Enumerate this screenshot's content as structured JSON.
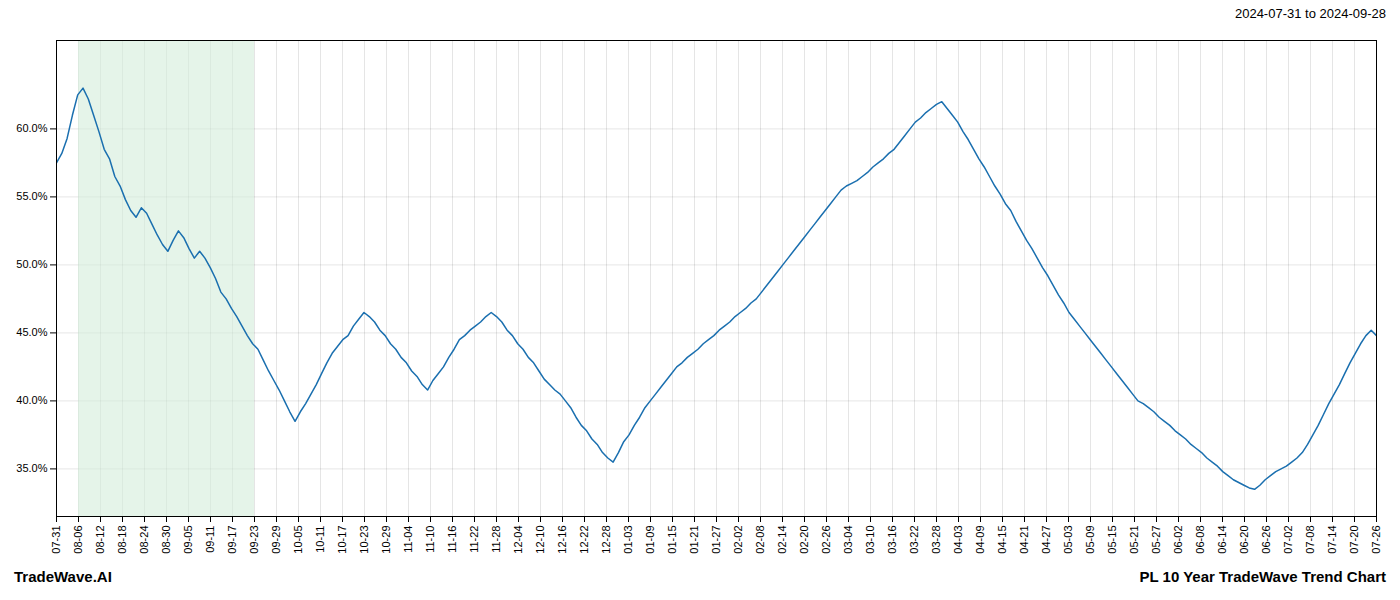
{
  "chart_data": {
    "type": "line",
    "title": "2024-07-31 to 2024-09-28",
    "annotations": [
      "TradeWave.AI",
      "PL 10 Year TradeWave Trend Chart"
    ],
    "color": "#1a6faf",
    "grid": true,
    "shade": {
      "x": [
        4.15,
        37.35
      ],
      "color": "#d4edda"
    },
    "xlim": [
      0,
      249
    ],
    "xticks": [
      {
        "value": 0,
        "label": "07-31"
      },
      {
        "value": 4.15,
        "label": "08-06"
      },
      {
        "value": 8.3,
        "label": "08-12"
      },
      {
        "value": 12.45,
        "label": "08-18"
      },
      {
        "value": 16.6,
        "label": "08-24"
      },
      {
        "value": 20.75,
        "label": "08-30"
      },
      {
        "value": 24.9,
        "label": "09-05"
      },
      {
        "value": 29.05,
        "label": "09-11"
      },
      {
        "value": 33.2,
        "label": "09-17"
      },
      {
        "value": 37.35,
        "label": "09-23"
      },
      {
        "value": 41.5,
        "label": "09-29"
      },
      {
        "value": 45.65,
        "label": "10-05"
      },
      {
        "value": 49.8,
        "label": "10-11"
      },
      {
        "value": 53.95,
        "label": "10-17"
      },
      {
        "value": 58.1,
        "label": "10-23"
      },
      {
        "value": 62.25,
        "label": "10-29"
      },
      {
        "value": 66.4,
        "label": "11-04"
      },
      {
        "value": 70.55,
        "label": "11-10"
      },
      {
        "value": 74.7,
        "label": "11-16"
      },
      {
        "value": 78.85,
        "label": "11-22"
      },
      {
        "value": 83,
        "label": "11-28"
      },
      {
        "value": 87.15,
        "label": "12-04"
      },
      {
        "value": 91.3,
        "label": "12-10"
      },
      {
        "value": 95.45,
        "label": "12-16"
      },
      {
        "value": 99.6,
        "label": "12-22"
      },
      {
        "value": 103.75,
        "label": "12-28"
      },
      {
        "value": 107.9,
        "label": "01-03"
      },
      {
        "value": 112.05,
        "label": "01-09"
      },
      {
        "value": 116.2,
        "label": "01-15"
      },
      {
        "value": 120.35,
        "label": "01-21"
      },
      {
        "value": 124.5,
        "label": "01-27"
      },
      {
        "value": 128.65,
        "label": "02-02"
      },
      {
        "value": 132.8,
        "label": "02-08"
      },
      {
        "value": 136.95,
        "label": "02-14"
      },
      {
        "value": 141.1,
        "label": "02-20"
      },
      {
        "value": 145.25,
        "label": "02-26"
      },
      {
        "value": 149.4,
        "label": "03-04"
      },
      {
        "value": 153.55,
        "label": "03-10"
      },
      {
        "value": 157.7,
        "label": "03-16"
      },
      {
        "value": 161.85,
        "label": "03-22"
      },
      {
        "value": 166,
        "label": "03-28"
      },
      {
        "value": 170.15,
        "label": "04-03"
      },
      {
        "value": 174.3,
        "label": "04-09"
      },
      {
        "value": 178.45,
        "label": "04-15"
      },
      {
        "value": 182.6,
        "label": "04-21"
      },
      {
        "value": 186.75,
        "label": "04-27"
      },
      {
        "value": 190.9,
        "label": "05-03"
      },
      {
        "value": 195.05,
        "label": "05-09"
      },
      {
        "value": 199.2,
        "label": "05-15"
      },
      {
        "value": 203.35,
        "label": "05-21"
      },
      {
        "value": 207.5,
        "label": "05-27"
      },
      {
        "value": 211.65,
        "label": "06-02"
      },
      {
        "value": 215.8,
        "label": "06-08"
      },
      {
        "value": 219.95,
        "label": "06-14"
      },
      {
        "value": 224.1,
        "label": "06-20"
      },
      {
        "value": 228.25,
        "label": "06-26"
      },
      {
        "value": 232.4,
        "label": "07-02"
      },
      {
        "value": 236.55,
        "label": "07-08"
      },
      {
        "value": 240.7,
        "label": "07-14"
      },
      {
        "value": 244.85,
        "label": "07-20"
      },
      {
        "value": 249,
        "label": "07-26"
      }
    ],
    "ylim": [
      0.315,
      0.665
    ],
    "yticks": [
      {
        "value": 0.35,
        "label": "35.0%"
      },
      {
        "value": 0.4,
        "label": "40.0%"
      },
      {
        "value": 0.45,
        "label": "45.0%"
      },
      {
        "value": 0.5,
        "label": "50.0%"
      },
      {
        "value": 0.55,
        "label": "55.0%"
      },
      {
        "value": 0.6,
        "label": "60.0%"
      }
    ],
    "x": [
      0,
      1,
      2,
      3,
      4,
      5,
      6,
      7,
      8,
      9,
      10,
      11,
      12,
      13,
      14,
      15,
      16,
      17,
      18,
      19,
      20,
      21,
      22,
      23,
      24,
      25,
      26,
      27,
      28,
      29,
      30,
      31,
      32,
      33,
      34,
      35,
      36,
      37,
      38,
      39,
      40,
      41,
      42,
      43,
      44,
      45,
      46,
      47,
      48,
      49,
      50,
      51,
      52,
      53,
      54,
      55,
      56,
      57,
      58,
      59,
      60,
      61,
      62,
      63,
      64,
      65,
      66,
      67,
      68,
      69,
      70,
      71,
      72,
      73,
      74,
      75,
      76,
      77,
      78,
      79,
      80,
      81,
      82,
      83,
      84,
      85,
      86,
      87,
      88,
      89,
      90,
      91,
      92,
      93,
      94,
      95,
      96,
      97,
      98,
      99,
      100,
      101,
      102,
      103,
      104,
      105,
      106,
      107,
      108,
      109,
      110,
      111,
      112,
      113,
      114,
      115,
      116,
      117,
      118,
      119,
      120,
      121,
      122,
      123,
      124,
      125,
      126,
      127,
      128,
      129,
      130,
      131,
      132,
      133,
      134,
      135,
      136,
      137,
      138,
      139,
      140,
      141,
      142,
      143,
      144,
      145,
      146,
      147,
      148,
      149,
      150,
      151,
      152,
      153,
      154,
      155,
      156,
      157,
      158,
      159,
      160,
      161,
      162,
      163,
      164,
      165,
      166,
      167,
      168,
      169,
      170,
      171,
      172,
      173,
      174,
      175,
      176,
      177,
      178,
      179,
      180,
      181,
      182,
      183,
      184,
      185,
      186,
      187,
      188,
      189,
      190,
      191,
      192,
      193,
      194,
      195,
      196,
      197,
      198,
      199,
      200,
      201,
      202,
      203,
      204,
      205,
      206,
      207,
      208,
      209,
      210,
      211,
      212,
      213,
      214,
      215,
      216,
      217,
      218,
      219,
      220,
      221,
      222,
      223,
      224,
      225,
      226,
      227,
      228,
      229,
      230,
      231,
      232,
      233,
      234,
      235,
      236,
      237,
      238,
      239,
      240,
      241,
      242,
      243,
      244,
      245,
      246,
      247,
      248,
      249
    ],
    "values": [
      0.575,
      0.582,
      0.593,
      0.61,
      0.625,
      0.63,
      0.622,
      0.61,
      0.598,
      0.585,
      0.578,
      0.565,
      0.558,
      0.548,
      0.54,
      0.535,
      0.542,
      0.538,
      0.53,
      0.522,
      0.515,
      0.51,
      0.518,
      0.525,
      0.52,
      0.512,
      0.505,
      0.51,
      0.505,
      0.498,
      0.49,
      0.48,
      0.475,
      0.468,
      0.462,
      0.455,
      0.448,
      0.442,
      0.438,
      0.43,
      0.422,
      0.415,
      0.408,
      0.4,
      0.392,
      0.385,
      0.392,
      0.398,
      0.405,
      0.412,
      0.42,
      0.428,
      0.435,
      0.44,
      0.445,
      0.448,
      0.455,
      0.46,
      0.465,
      0.462,
      0.458,
      0.452,
      0.448,
      0.442,
      0.438,
      0.432,
      0.428,
      0.422,
      0.418,
      0.412,
      0.408,
      0.415,
      0.42,
      0.425,
      0.432,
      0.438,
      0.445,
      0.448,
      0.452,
      0.455,
      0.458,
      0.462,
      0.465,
      0.462,
      0.458,
      0.452,
      0.448,
      0.442,
      0.438,
      0.432,
      0.428,
      0.422,
      0.416,
      0.412,
      0.408,
      0.405,
      0.4,
      0.395,
      0.388,
      0.382,
      0.378,
      0.372,
      0.368,
      0.362,
      0.358,
      0.355,
      0.362,
      0.37,
      0.375,
      0.382,
      0.388,
      0.395,
      0.4,
      0.405,
      0.41,
      0.415,
      0.42,
      0.425,
      0.428,
      0.432,
      0.435,
      0.438,
      0.442,
      0.445,
      0.448,
      0.452,
      0.455,
      0.458,
      0.462,
      0.465,
      0.468,
      0.472,
      0.475,
      0.48,
      0.485,
      0.49,
      0.495,
      0.5,
      0.505,
      0.51,
      0.515,
      0.52,
      0.525,
      0.53,
      0.535,
      0.54,
      0.545,
      0.55,
      0.555,
      0.558,
      0.56,
      0.562,
      0.565,
      0.568,
      0.572,
      0.575,
      0.578,
      0.582,
      0.585,
      0.59,
      0.595,
      0.6,
      0.605,
      0.608,
      0.612,
      0.615,
      0.618,
      0.62,
      0.615,
      0.61,
      0.605,
      0.598,
      0.592,
      0.585,
      0.578,
      0.572,
      0.565,
      0.558,
      0.552,
      0.545,
      0.54,
      0.532,
      0.525,
      0.518,
      0.512,
      0.505,
      0.498,
      0.492,
      0.485,
      0.478,
      0.472,
      0.465,
      0.46,
      0.455,
      0.45,
      0.445,
      0.44,
      0.435,
      0.43,
      0.425,
      0.42,
      0.415,
      0.41,
      0.405,
      0.4,
      0.398,
      0.395,
      0.392,
      0.388,
      0.385,
      0.382,
      0.378,
      0.375,
      0.372,
      0.368,
      0.365,
      0.362,
      0.358,
      0.355,
      0.352,
      0.348,
      0.345,
      0.342,
      0.34,
      0.338,
      0.336,
      0.335,
      0.338,
      0.342,
      0.345,
      0.348,
      0.35,
      0.352,
      0.355,
      0.358,
      0.362,
      0.368,
      0.375,
      0.382,
      0.39,
      0.398,
      0.405,
      0.412,
      0.42,
      0.428,
      0.435,
      0.442,
      0.448,
      0.452,
      0.448
    ]
  }
}
